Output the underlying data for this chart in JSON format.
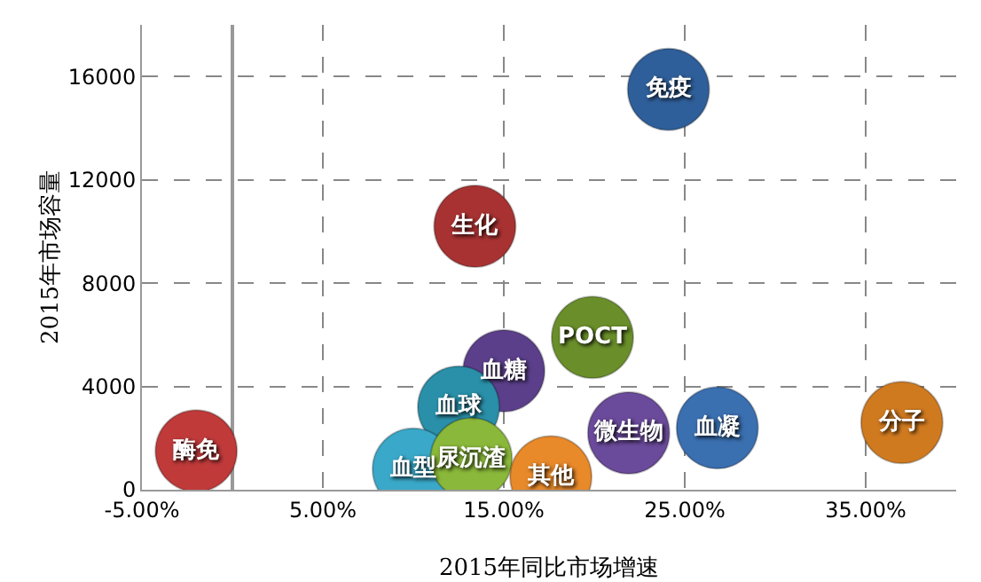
{
  "chart_data": {
    "type": "bubble",
    "xlabel": "2015年同比市场增速",
    "ylabel": "2015年市场容量",
    "xlim": [
      -5,
      40
    ],
    "xticks": [
      {
        "value": -5,
        "label": "-5.00%"
      },
      {
        "value": 5,
        "label": "5.00%"
      },
      {
        "value": 15,
        "label": "15.00%"
      },
      {
        "value": 25,
        "label": "25.00%"
      },
      {
        "value": 35,
        "label": "35.00%"
      }
    ],
    "ylim": [
      0,
      18000
    ],
    "yticks": [
      0,
      4000,
      8000,
      12000,
      16000
    ],
    "grid": true,
    "legend": false,
    "series": [
      {
        "name": "免疫",
        "color": "#2f5f9a",
        "x": [
          24.1
        ],
        "values": [
          15500
        ],
        "sizes": [
          1
        ]
      },
      {
        "name": "生化",
        "color": "#a83232",
        "x": [
          13.4
        ],
        "values": [
          10200
        ],
        "sizes": [
          1
        ]
      },
      {
        "name": "POCT",
        "color": "#6a8f2a",
        "x": [
          19.9
        ],
        "values": [
          5900
        ],
        "sizes": [
          1
        ]
      },
      {
        "name": "血糖",
        "color": "#5b3f8a",
        "x": [
          15.0
        ],
        "values": [
          4600
        ],
        "sizes": [
          1
        ]
      },
      {
        "name": "血球",
        "color": "#2a8fa8",
        "x": [
          12.5
        ],
        "values": [
          3200
        ],
        "sizes": [
          1
        ]
      },
      {
        "name": "微生物",
        "color": "#6a4a9a",
        "x": [
          21.9
        ],
        "values": [
          2200
        ],
        "sizes": [
          1
        ]
      },
      {
        "name": "血凝",
        "color": "#3a6fb0",
        "x": [
          26.8
        ],
        "values": [
          2400
        ],
        "sizes": [
          1
        ]
      },
      {
        "name": "分子",
        "color": "#d07a20",
        "x": [
          37.0
        ],
        "values": [
          2600
        ],
        "sizes": [
          1
        ]
      },
      {
        "name": "酶免",
        "color": "#c03a3a",
        "x": [
          -2.0
        ],
        "values": [
          1500
        ],
        "sizes": [
          1
        ]
      },
      {
        "name": "血型",
        "color": "#3aa8c8",
        "x": [
          10.0
        ],
        "values": [
          800
        ],
        "sizes": [
          1
        ]
      },
      {
        "name": "尿沉渣",
        "color": "#8ab83a",
        "x": [
          13.2
        ],
        "values": [
          1200
        ],
        "sizes": [
          1
        ]
      },
      {
        "name": "其他",
        "color": "#e8892a",
        "x": [
          17.6
        ],
        "values": [
          500
        ],
        "sizes": [
          1
        ]
      }
    ]
  }
}
